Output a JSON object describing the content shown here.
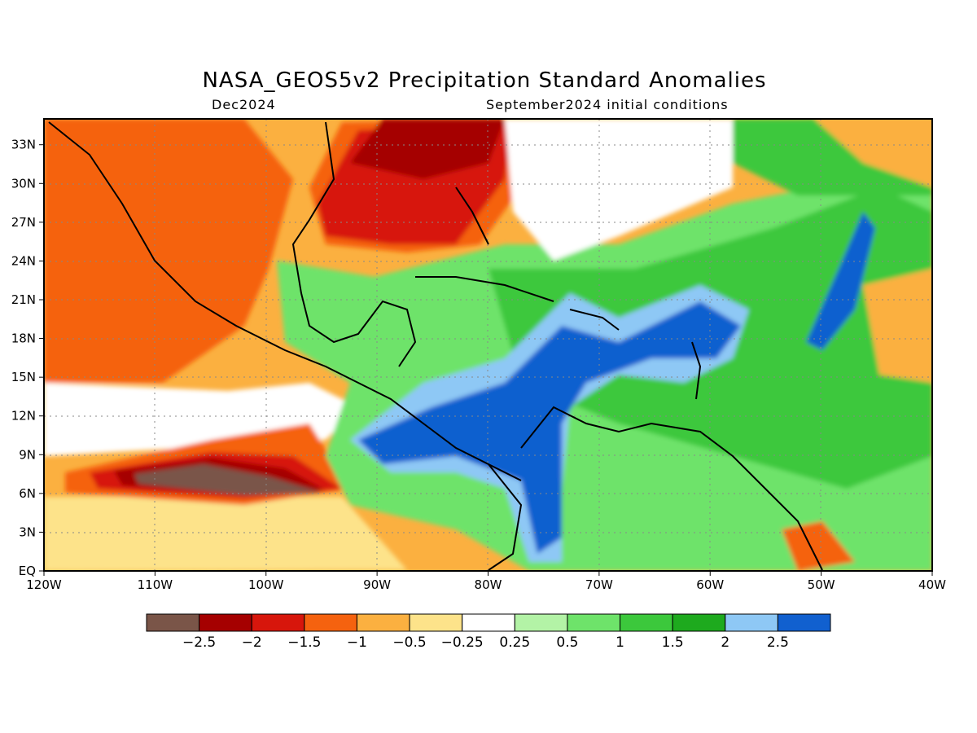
{
  "title": "NASA_GEOS5v2 Precipitation Standard Anomalies",
  "subtitle_left": "Dec2024",
  "subtitle_right": "September2024 initial conditions",
  "map": {
    "lon_range": [
      -120,
      -40
    ],
    "lat_range": [
      0,
      35
    ],
    "x_ticks": [
      "120W",
      "110W",
      "100W",
      "90W",
      "80W",
      "70W",
      "60W",
      "50W",
      "40W"
    ],
    "y_ticks": [
      "EQ",
      "3N",
      "6N",
      "9N",
      "12N",
      "15N",
      "18N",
      "21N",
      "24N",
      "27N",
      "30N",
      "33N"
    ],
    "grid": "dotted"
  },
  "colorbar": {
    "labels": [
      "-2.5",
      "-2",
      "-1.5",
      "-1",
      "-0.5",
      "-0.25",
      "0.25",
      "0.5",
      "1",
      "1.5",
      "2",
      "2.5"
    ],
    "colors": [
      "#7a5548",
      "#a50000",
      "#d7160c",
      "#f5620f",
      "#fbb040",
      "#fde38a",
      "#ffffff",
      "#b3f3a6",
      "#6ee36a",
      "#3cc83c",
      "#1eaa1e",
      "#8ec8f5",
      "#1160cf"
    ]
  }
}
